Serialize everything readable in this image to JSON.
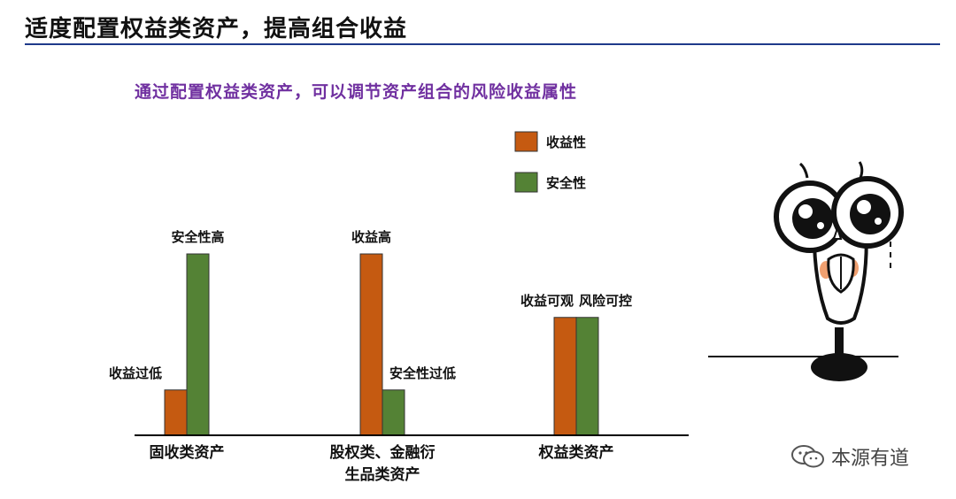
{
  "slide": {
    "title": "适度配置权益类资产，提高组合收益",
    "subtitle": "通过配置权益类资产，可以调节资产组合的风险收益属性",
    "watermark": "本源有道"
  },
  "colors": {
    "accent_rule": "#1f3a8a",
    "subtitle": "#7030a0",
    "series_return": "#c55a11",
    "series_safety": "#548235",
    "axis": "#000000"
  },
  "chart_data": {
    "type": "bar",
    "categories": [
      [
        "固收类资产"
      ],
      [
        "股权类、金融衍",
        "生品类资产"
      ],
      [
        "权益类资产"
      ]
    ],
    "series": [
      {
        "name": "收益性",
        "values": [
          1,
          4,
          2.6
        ],
        "labels": [
          "收益过低",
          "收益高",
          "收益可观"
        ]
      },
      {
        "name": "安全性",
        "values": [
          4,
          1,
          2.6
        ],
        "labels": [
          "安全性高",
          "安全性过低",
          "风险可控"
        ]
      }
    ],
    "ylim": [
      0,
      4
    ],
    "xlabel": "",
    "ylabel": "",
    "legend": "top-right",
    "grid": false
  }
}
